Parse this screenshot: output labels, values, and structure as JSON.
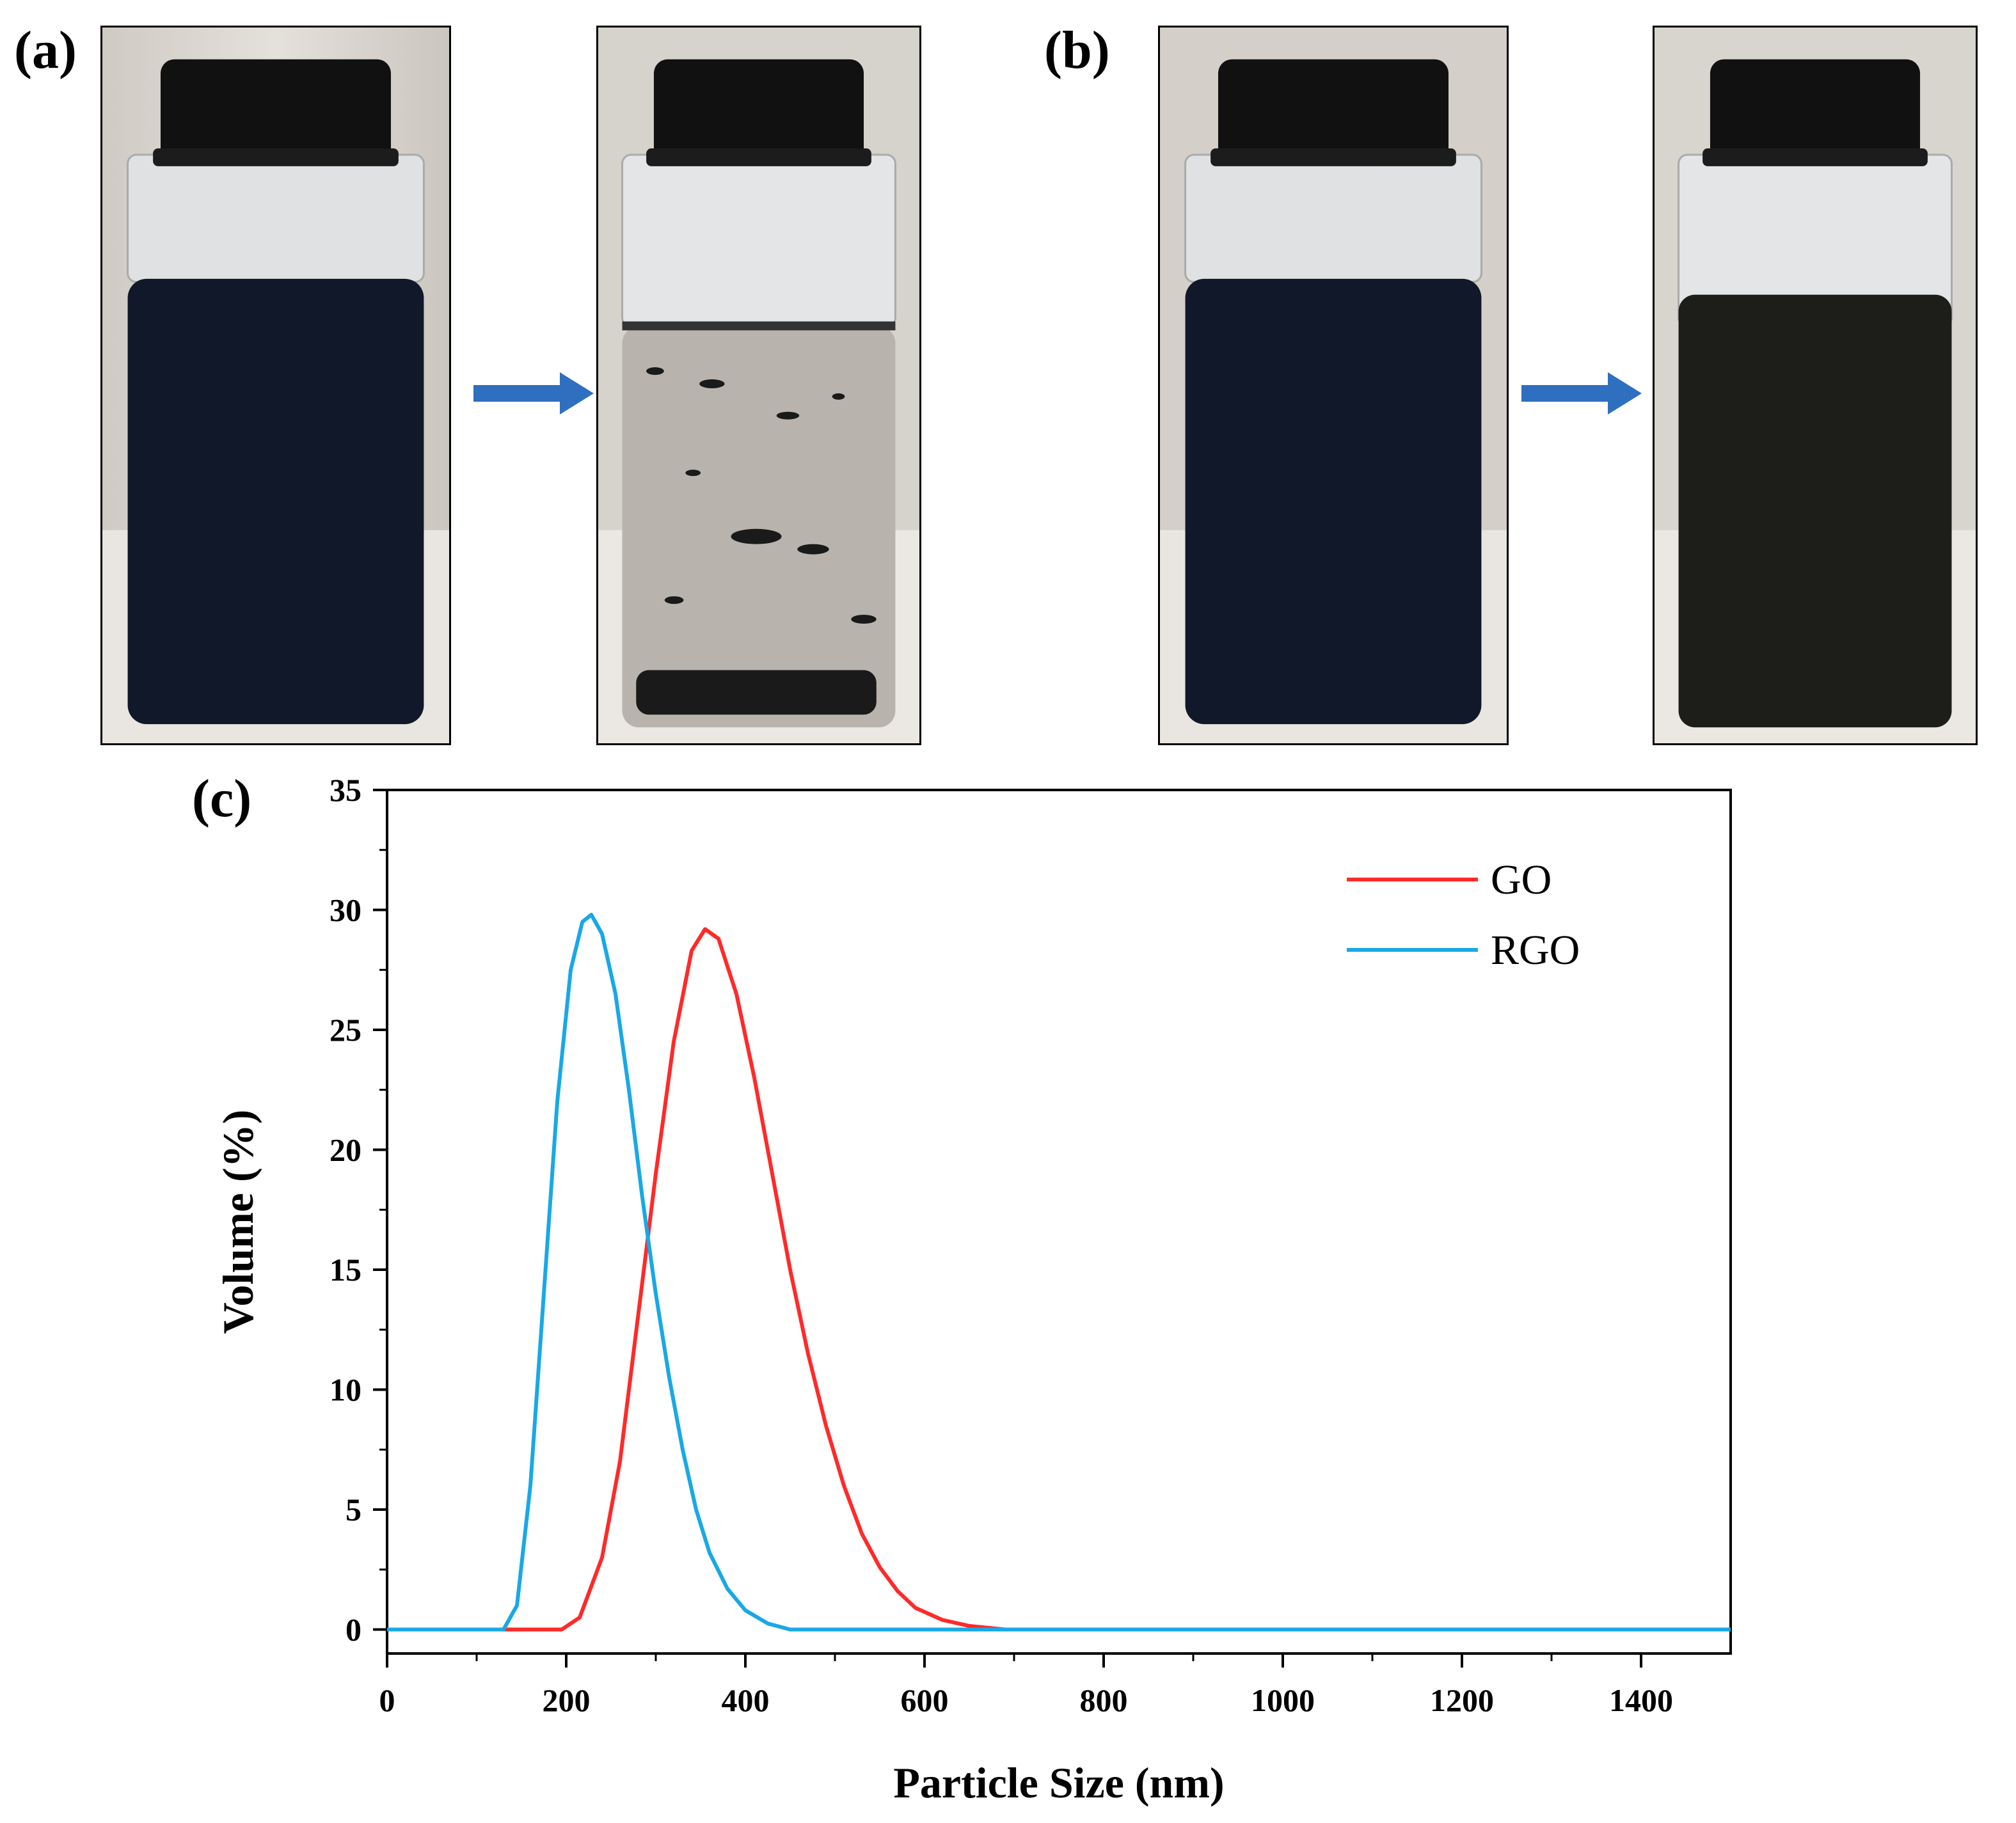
{
  "panels": {
    "a": "(a)",
    "b": "(b)",
    "c": "(c)"
  },
  "photos": [
    {
      "panel": "a",
      "state": "before",
      "liquid": "#11182a"
    },
    {
      "panel": "a",
      "state": "after",
      "liquid": "#b8b4ad"
    },
    {
      "panel": "b",
      "state": "before",
      "liquid": "#11182a"
    },
    {
      "panel": "b",
      "state": "after",
      "liquid": "#1d1d1a"
    }
  ],
  "colors": {
    "arrow": "#2f6fbf",
    "GO": "#ff2a2a",
    "RGO": "#19a8e6"
  },
  "chart_data": {
    "type": "line",
    "xlabel": "Particle Size (nm)",
    "ylabel": "Volume (%)",
    "xlim": [
      0,
      1500
    ],
    "ylim": [
      -1,
      35
    ],
    "xticks": [
      0,
      200,
      400,
      600,
      800,
      1000,
      1200,
      1400
    ],
    "yticks": [
      0,
      5,
      10,
      15,
      20,
      25,
      30,
      35
    ],
    "grid": false,
    "legend_position": "top-right",
    "series": [
      {
        "name": "GO",
        "color": "#ff2a2a",
        "points": [
          [
            0,
            0
          ],
          [
            195,
            0
          ],
          [
            215,
            0.5
          ],
          [
            240,
            3
          ],
          [
            260,
            7
          ],
          [
            280,
            13
          ],
          [
            300,
            19
          ],
          [
            320,
            24.5
          ],
          [
            340,
            28.3
          ],
          [
            355,
            29.2
          ],
          [
            370,
            28.8
          ],
          [
            390,
            26.5
          ],
          [
            410,
            23
          ],
          [
            430,
            19
          ],
          [
            450,
            15
          ],
          [
            470,
            11.5
          ],
          [
            490,
            8.5
          ],
          [
            510,
            6
          ],
          [
            530,
            4
          ],
          [
            550,
            2.6
          ],
          [
            570,
            1.6
          ],
          [
            590,
            0.9
          ],
          [
            620,
            0.4
          ],
          [
            650,
            0.15
          ],
          [
            690,
            0
          ],
          [
            1500,
            0
          ]
        ]
      },
      {
        "name": "RGO",
        "color": "#19a8e6",
        "points": [
          [
            0,
            0
          ],
          [
            130,
            0
          ],
          [
            145,
            1
          ],
          [
            160,
            6
          ],
          [
            175,
            14
          ],
          [
            190,
            22
          ],
          [
            205,
            27.5
          ],
          [
            218,
            29.5
          ],
          [
            228,
            29.8
          ],
          [
            240,
            29
          ],
          [
            255,
            26.5
          ],
          [
            270,
            22.5
          ],
          [
            285,
            18
          ],
          [
            300,
            14
          ],
          [
            315,
            10.5
          ],
          [
            330,
            7.5
          ],
          [
            345,
            5
          ],
          [
            360,
            3.2
          ],
          [
            380,
            1.7
          ],
          [
            400,
            0.8
          ],
          [
            425,
            0.25
          ],
          [
            450,
            0
          ],
          [
            1500,
            0
          ]
        ]
      }
    ]
  }
}
